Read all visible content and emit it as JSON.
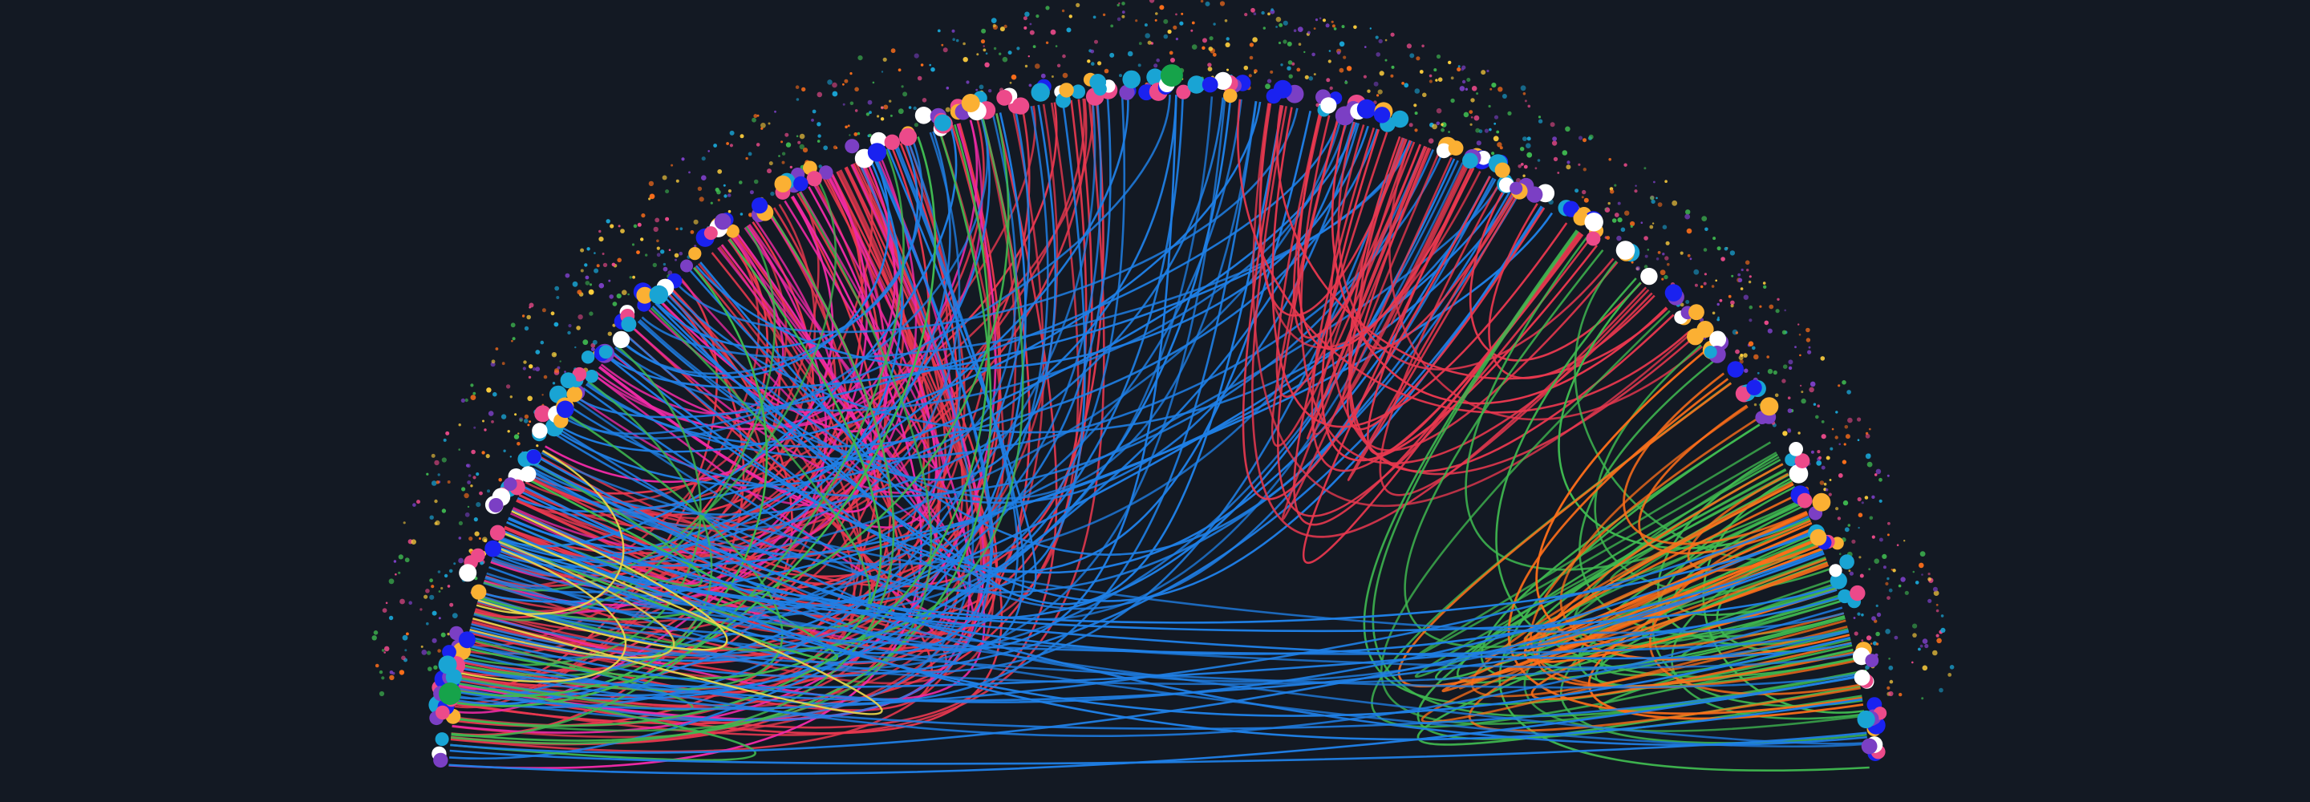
{
  "artwork": {
    "kind": "circular network graph (radial chord-link visualization)",
    "background_color": "#131923",
    "link_colors": {
      "red": "#e8384f",
      "magenta": "#ef2aa6",
      "blue": "#1f7fe6",
      "green": "#3fb950",
      "orange": "#ff6f1a",
      "yellow": "#e8d44d"
    },
    "node_colors": [
      "#ffffff",
      "#fbb033",
      "#ec4a8a",
      "#7b3fc4",
      "#19a4d4",
      "#1a22f0",
      "#16a34a"
    ],
    "speckle_colors": [
      "#ffcf3d",
      "#ec4a8a",
      "#3fb950",
      "#19a4d4",
      "#7b3fc4",
      "#ff6f1a"
    ]
  }
}
